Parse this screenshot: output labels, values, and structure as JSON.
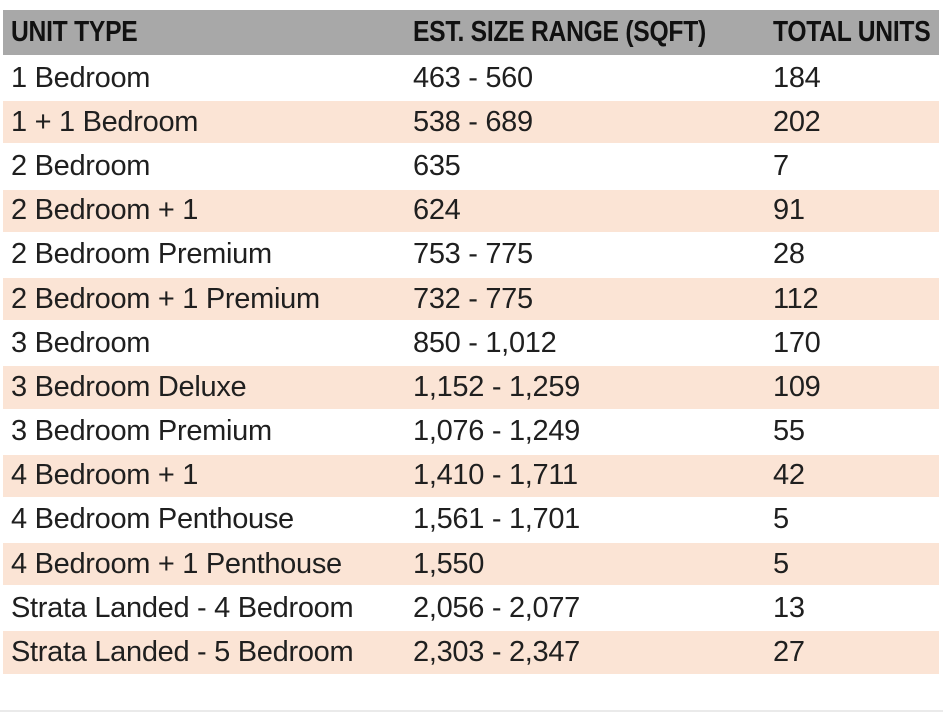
{
  "table": {
    "columns": {
      "unit_type": "UNIT TYPE",
      "size_range": "EST. SIZE RANGE (SQFT)",
      "total_units": "TOTAL UNITS"
    },
    "rows": [
      {
        "unit_type": "1 Bedroom",
        "size_range": "463 - 560",
        "total_units": "184"
      },
      {
        "unit_type": "1 + 1 Bedroom",
        "size_range": "538 - 689",
        "total_units": "202"
      },
      {
        "unit_type": "2 Bedroom",
        "size_range": "635",
        "total_units": "7"
      },
      {
        "unit_type": "2 Bedroom + 1",
        "size_range": "624",
        "total_units": "91"
      },
      {
        "unit_type": "2 Bedroom Premium",
        "size_range": "753 - 775",
        "total_units": "28"
      },
      {
        "unit_type": "2 Bedroom + 1 Premium",
        "size_range": "732 - 775",
        "total_units": "112"
      },
      {
        "unit_type": "3 Bedroom",
        "size_range": "850 - 1,012",
        "total_units": "170"
      },
      {
        "unit_type": "3 Bedroom Deluxe",
        "size_range": "1,152 - 1,259",
        "total_units": "109"
      },
      {
        "unit_type": "3 Bedroom Premium",
        "size_range": "1,076 - 1,249",
        "total_units": "55"
      },
      {
        "unit_type": "4 Bedroom + 1",
        "size_range": "1,410 - 1,711",
        "total_units": "42"
      },
      {
        "unit_type": "4 Bedroom Penthouse",
        "size_range": "1,561 - 1,701",
        "total_units": "5"
      },
      {
        "unit_type": "4 Bedroom + 1 Penthouse",
        "size_range": "1,550",
        "total_units": "5"
      },
      {
        "unit_type": "Strata Landed - 4 Bedroom",
        "size_range": "2,056 - 2,077",
        "total_units": "13"
      },
      {
        "unit_type": "Strata Landed - 5 Bedroom",
        "size_range": "2,303 - 2,347",
        "total_units": "27"
      }
    ]
  },
  "colors": {
    "header_bg": "#a8a8a8",
    "header_text": "#111111",
    "row_bg": "#ffffff",
    "row_alt_bg": "#fbe4d5",
    "text": "#1f1f1f",
    "bottom_rule": "#eaeaea"
  }
}
